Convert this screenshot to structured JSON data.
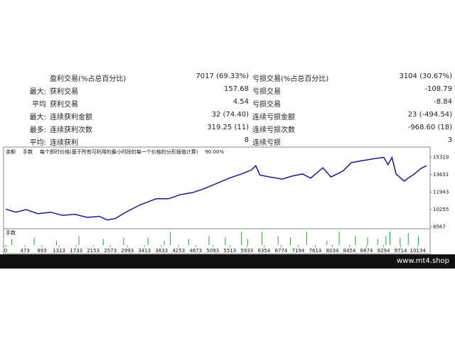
{
  "table": {
    "rows": [
      {
        "left_label": "盈利交易(%占总百分比)",
        "left_value": "7017 (69.33%)",
        "right_label": "亏损交易(%占总百分比)",
        "right_value": "3104 (30.67%)"
      },
      {
        "prefix": "最大:",
        "left_label": "获利交易",
        "left_value": "157.68",
        "right_label": "亏损交易",
        "right_value": "-108.79"
      },
      {
        "prefix": "平均",
        "left_label": "获利交易",
        "left_value": "4.54",
        "right_label": "亏损交易",
        "right_value": "-8.84"
      },
      {
        "prefix": "最大:",
        "left_label": "连续获利金额",
        "left_value": "32 (74.40)",
        "right_label": "连续亏损金额",
        "right_value": "23 (-494.54)"
      },
      {
        "prefix": "最多:",
        "left_label": "连续获利次数",
        "left_value": "319.25 (11)",
        "right_label": "连续亏损次数",
        "right_value": "-968.60 (18)"
      },
      {
        "prefix": "平均:",
        "left_label": "连续获利",
        "left_value": "8",
        "right_label": "连续亏损",
        "right_value": "3"
      }
    ]
  },
  "chart_data": {
    "type": "line",
    "legend": [
      "余额",
      "手数",
      "每个即时价格(基于所有可利用的最小时段的每一个价格的分形插值计算)",
      "90.00%"
    ],
    "series": [
      {
        "name": "余额",
        "color": "#1a1a8c",
        "x": [
          0,
          250,
          500,
          800,
          1100,
          1400,
          1700,
          2000,
          2300,
          2500,
          2700,
          3000,
          3300,
          3500,
          3700,
          4000,
          4300,
          4600,
          4900,
          5200,
          5500,
          5800,
          6050,
          6150,
          6250,
          6500,
          6800,
          7050,
          7300,
          7500,
          7800,
          8000,
          8300,
          8500,
          8800,
          9100,
          9300,
          9400,
          9500,
          9600,
          9800,
          9900,
          10050,
          10200,
          10350
        ],
        "values": [
          10300,
          10000,
          10250,
          9850,
          10000,
          9700,
          9800,
          9500,
          9600,
          9250,
          9400,
          10100,
          10700,
          11000,
          11300,
          11300,
          11700,
          11900,
          12300,
          12800,
          13300,
          13700,
          14100,
          14500,
          13600,
          13400,
          13200,
          13500,
          13700,
          13300,
          14300,
          13400,
          14000,
          14800,
          15000,
          15200,
          15300,
          14600,
          15300,
          13700,
          13000,
          13300,
          13700,
          14200,
          14500
        ]
      }
    ],
    "lots": {
      "name": "手数",
      "color": "#2e9e2e",
      "x": [
        150,
        700,
        1250,
        1800,
        2400,
        2900,
        3500,
        3900,
        4050,
        4500,
        5000,
        5400,
        5800,
        5950,
        6300,
        6700,
        7000,
        7400,
        7900,
        8200,
        8600,
        8900,
        9150,
        9350,
        9450,
        9700,
        9900,
        10150
      ],
      "values": [
        0.4,
        0.5,
        0.3,
        0.6,
        0.4,
        0.5,
        0.5,
        0.3,
        0.9,
        0.4,
        0.6,
        0.5,
        0.9,
        0.4,
        0.9,
        0.6,
        0.5,
        0.9,
        0.3,
        0.9,
        0.6,
        0.5,
        0.4,
        0.6,
        0.9,
        0.5,
        0.8,
        0.6
      ],
      "ylim": [
        0,
        1
      ]
    },
    "xlim": [
      0,
      10350
    ],
    "xticks": [
      0,
      473,
      893,
      1313,
      1733,
      2153,
      2573,
      2993,
      3413,
      3833,
      4253,
      4673,
      5093,
      5513,
      5933,
      6354,
      6774,
      7194,
      7614,
      8034,
      8454,
      8874,
      9294,
      9714,
      10134
    ],
    "ylim": [
      8400,
      16300
    ],
    "yticks": [
      15319,
      13631,
      11943,
      10255,
      8567
    ]
  },
  "footer": {
    "site": "www.mt4.shop"
  }
}
